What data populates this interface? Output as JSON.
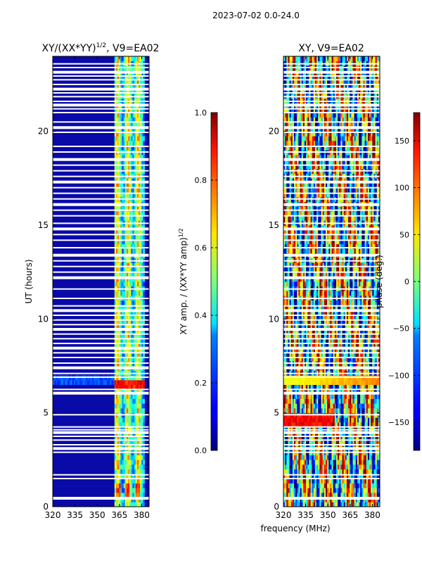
{
  "suptitle": "2023-07-02 0.0-24.0",
  "chart_data": [
    {
      "type": "heatmap",
      "title_prefix": "XY/(XX*YY)",
      "title_exp": "1/2",
      "title_suffix": ", V9=EA02",
      "xlabel": "",
      "ylabel": "UT (hours)",
      "xlim": [
        320,
        385
      ],
      "ylim": [
        0,
        24
      ],
      "xticks": [
        "320",
        "335",
        "350",
        "365",
        "380"
      ],
      "yticks": [
        "0",
        "5",
        "10",
        "15",
        "20"
      ],
      "colorbar": {
        "label": "XY amp. / (XX*YY amp)",
        "label_exp": "1/2",
        "range": [
          0.0,
          1.0
        ],
        "ticks": [
          "0.0",
          "0.2",
          "0.4",
          "0.6",
          "0.8",
          "1.0"
        ]
      },
      "note": "amplitude low (~0.05) below 362 MHz; patchy 0.3-0.9 between 362-382 MHz; peaks near 6.5 h"
    },
    {
      "type": "heatmap",
      "title": "XY, V9=EA02",
      "xlabel": "frequency (MHz)",
      "ylabel": "",
      "xlim": [
        320,
        385
      ],
      "ylim": [
        0,
        24
      ],
      "xticks": [
        "320",
        "335",
        "350",
        "365",
        "380"
      ],
      "yticks": [
        "0",
        "5",
        "10",
        "15",
        "20"
      ],
      "colorbar": {
        "label": "phase (deg.)",
        "range": [
          -180,
          180
        ],
        "ticks": [
          "150",
          "100",
          "50",
          "0",
          "−50",
          "−100",
          "−150"
        ]
      },
      "note": "phase varies across full -180 to 180 deg range"
    }
  ],
  "flagged_hours": [
    0.45,
    1.5,
    1.7,
    2.9,
    3.1,
    3.3,
    3.55,
    3.75,
    3.95,
    4.1,
    4.25,
    4.9,
    6.05,
    6.25,
    6.9,
    7.1,
    7.4,
    7.65,
    7.95,
    8.2,
    8.45,
    8.7,
    8.95,
    9.2,
    9.45,
    9.7,
    9.95,
    10.2,
    10.45,
    10.7,
    11.1,
    11.6,
    12.2,
    12.5,
    12.8,
    13.1,
    13.4,
    13.8,
    14.2,
    14.5,
    14.8,
    15.1,
    15.5,
    15.8,
    16.1,
    16.4,
    16.7,
    17.0,
    17.3,
    17.6,
    17.9,
    18.2,
    18.5,
    18.9,
    19.2,
    19.95,
    20.2,
    20.5,
    21.0,
    21.2,
    21.4,
    21.6,
    21.85,
    22.05,
    22.25,
    22.5,
    22.75,
    22.95,
    23.15,
    23.4,
    23.6
  ]
}
